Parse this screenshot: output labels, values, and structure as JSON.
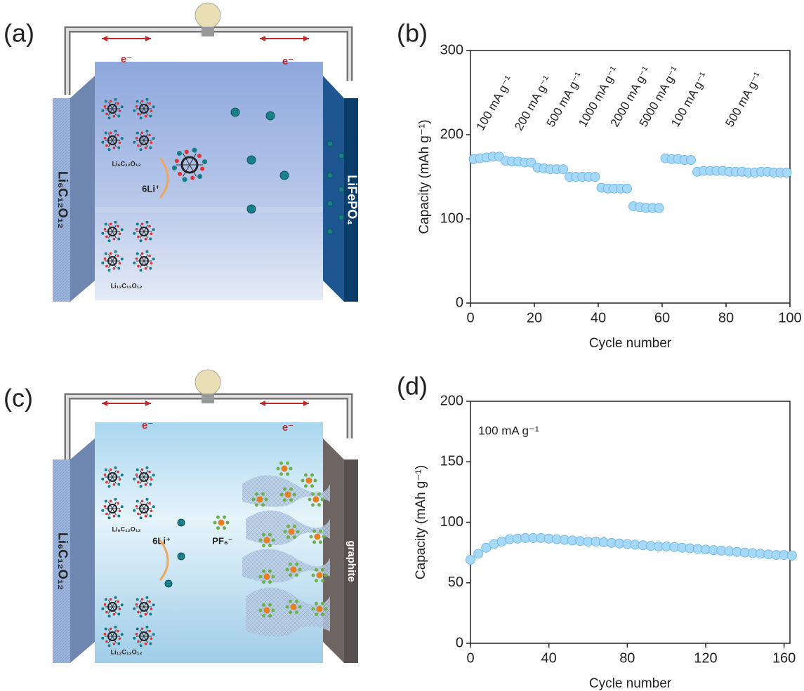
{
  "diagram_a": {
    "panel_label": "(a)",
    "electron_labels": [
      "e⁻",
      "e⁻"
    ],
    "left_electrode": "Li₆C₁₂O₁₂",
    "right_electrode": "LiFePO₄",
    "top_molecule": "Li₆C₁₂O₁₂",
    "ion": "6Li⁺",
    "bottom_molecule": "Li₁₂C₁₂O₁₂"
  },
  "diagram_c": {
    "panel_label": "(c)",
    "electron_labels": [
      "e⁻",
      "e⁻"
    ],
    "left_electrode": "Li₆C₁₂O₁₂",
    "right_electrode": "graphite",
    "top_molecule": "Li₆C₁₂O₁₂",
    "ion": "6Li⁺",
    "anion": "PF₆⁻",
    "bottom_molecule": "Li₁₂C₁₂O₁₂"
  },
  "chart_data": [
    {
      "type": "scatter",
      "panel_label": "(b)",
      "xlabel": "Cycle number",
      "ylabel": "Capacity (mAh g⁻¹)",
      "annotations": [
        "100 mA g⁻¹",
        "200 mA g⁻¹",
        "500 mA g⁻¹",
        "1000 mA g⁻¹",
        "2000 mA g⁻¹",
        "5000 mA g⁻¹",
        "100 mA g⁻¹",
        "500 mA g⁻¹"
      ],
      "x": [
        1,
        3,
        5,
        7,
        9,
        11,
        13,
        15,
        17,
        19,
        21,
        23,
        25,
        27,
        29,
        31,
        33,
        35,
        37,
        39,
        41,
        43,
        45,
        47,
        49,
        51,
        53,
        55,
        57,
        59,
        61,
        63,
        65,
        67,
        69,
        71,
        73,
        75,
        77,
        79,
        81,
        83,
        85,
        87,
        89,
        91,
        93,
        95,
        97,
        99
      ],
      "series": [
        {
          "color": "#a6d8f7",
          "values": [
            171,
            172,
            173,
            174,
            174,
            169,
            168,
            168,
            167,
            167,
            161,
            160,
            159,
            159,
            159,
            150,
            150,
            150,
            150,
            150,
            137,
            136,
            136,
            136,
            136,
            115,
            114,
            113,
            113,
            113,
            172,
            171,
            171,
            170,
            170,
            156,
            157,
            157,
            157,
            157,
            156,
            156,
            156,
            155,
            155,
            156,
            156,
            155,
            155,
            155
          ]
        }
      ],
      "xlim": [
        0,
        100
      ],
      "ylim": [
        0,
        300
      ],
      "xticks": [
        0,
        20,
        40,
        60,
        80,
        100
      ],
      "yticks": [
        0,
        100,
        200,
        300
      ]
    },
    {
      "type": "scatter",
      "panel_label": "(d)",
      "xlabel": "Cycle number",
      "ylabel": "Capacity (mAh g⁻¹)",
      "annotations": [
        "100 mA g⁻¹"
      ],
      "x": [
        0,
        4,
        8,
        12,
        16,
        20,
        24,
        28,
        32,
        36,
        40,
        44,
        48,
        52,
        56,
        60,
        64,
        68,
        72,
        76,
        80,
        84,
        88,
        92,
        96,
        100,
        104,
        108,
        112,
        116,
        120,
        124,
        128,
        132,
        136,
        140,
        144,
        148,
        152,
        156,
        160,
        164
      ],
      "series": [
        {
          "color": "#a6d8f7",
          "values": [
            69,
            74,
            79,
            82,
            84,
            86,
            86.5,
            87,
            87,
            87,
            86.5,
            86,
            85.5,
            85,
            84.5,
            84,
            84,
            83.5,
            83,
            82.5,
            82,
            81.5,
            81,
            80.5,
            80,
            80,
            79.5,
            79,
            78.5,
            78,
            77.5,
            77,
            76.5,
            76,
            75.5,
            75,
            74.5,
            74,
            73.5,
            73,
            73,
            72.5
          ]
        }
      ],
      "xlim": [
        0,
        163
      ],
      "ylim": [
        0,
        200
      ],
      "xticks": [
        0,
        40,
        80,
        120,
        160
      ],
      "yticks": [
        0,
        50,
        100,
        150,
        200
      ]
    }
  ]
}
